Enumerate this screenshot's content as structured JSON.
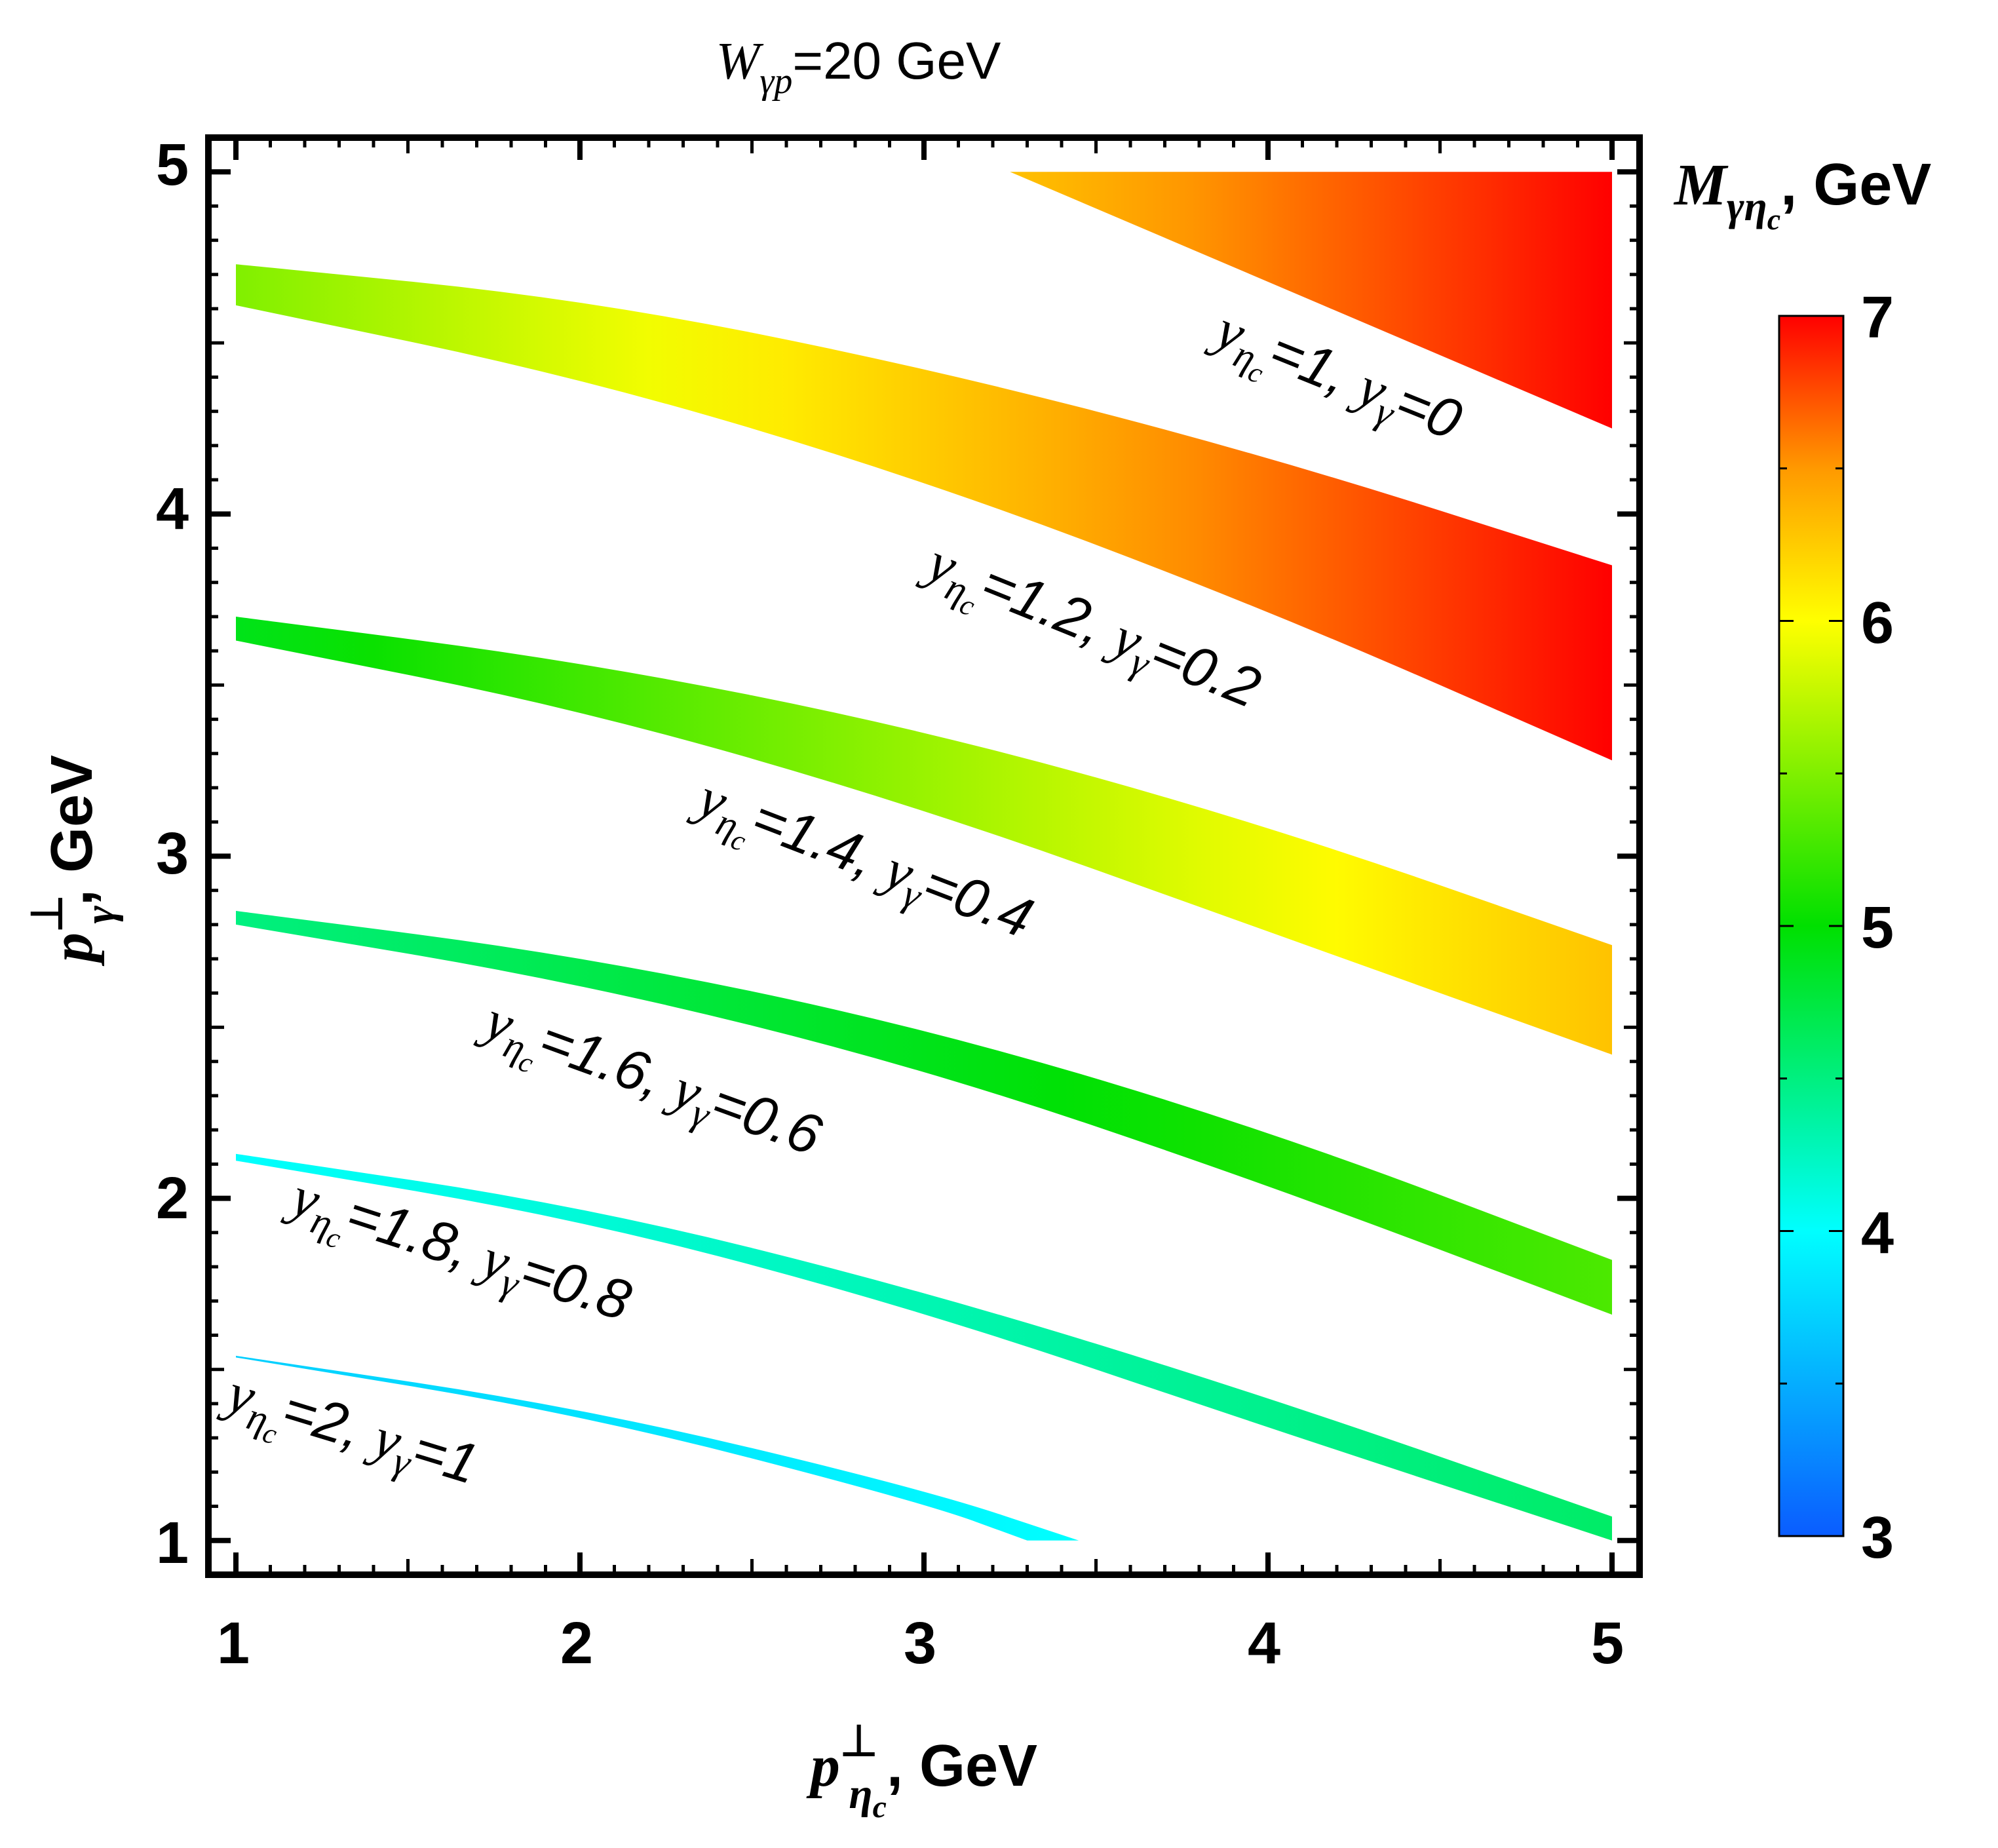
{
  "chart_data": {
    "type": "heatmap",
    "title": "W_γp=20 GeV",
    "title_parts": {
      "main": "W",
      "sub": "γp",
      "rest": "=20 GeV"
    },
    "xlabel": "p_ηc^⊥, GeV",
    "xlabel_parts": {
      "main": "p",
      "sup": "⊥",
      "sub": "η",
      "subsub": "c",
      "rest": ", GeV"
    },
    "ylabel": "p_γ^⊥, GeV",
    "ylabel_parts": {
      "main": "p",
      "sup": "⊥",
      "sub": "γ",
      "rest": ", GeV"
    },
    "xlim": [
      0.92,
      5.08
    ],
    "ylim": [
      0.9,
      5.1
    ],
    "x_ticks": [
      "1",
      "2",
      "3",
      "4",
      "5"
    ],
    "y_ticks": [
      "1",
      "2",
      "3",
      "4",
      "5"
    ],
    "colorbar": {
      "label": "M_γηc, GeV",
      "label_parts": {
        "main": "M",
        "sub": "γη",
        "subsub": "c",
        "rest": ", GeV"
      },
      "range": [
        3,
        7
      ],
      "ticks": [
        "3",
        "4",
        "5",
        "6",
        "7"
      ],
      "stops": [
        {
          "value": 3.0,
          "color": "#0a5cff"
        },
        {
          "value": 4.0,
          "color": "#00ffff"
        },
        {
          "value": 5.0,
          "color": "#00e000"
        },
        {
          "value": 6.0,
          "color": "#ffff00"
        },
        {
          "value": 6.5,
          "color": "#ff9900"
        },
        {
          "value": 7.0,
          "color": "#ff0000"
        }
      ]
    },
    "series": [
      {
        "name": "y_ηc=1, y_γ=0",
        "label": {
          "yeta": "1",
          "ygamma": "0"
        },
        "upper": [
          [
            3.25,
            5.0
          ],
          [
            5.0,
            5.0
          ]
        ],
        "lower": [
          [
            3.25,
            5.0
          ],
          [
            5.0,
            4.25
          ]
        ],
        "m_range": [
          6.3,
          7.0
        ]
      },
      {
        "name": "y_ηc=1.2, y_γ=0.2",
        "label": {
          "yeta": "1.2",
          "ygamma": "0.2"
        },
        "upper": [
          [
            1.0,
            4.73
          ],
          [
            2.0,
            4.63
          ],
          [
            3.0,
            4.43
          ],
          [
            4.0,
            4.17
          ],
          [
            5.0,
            3.85
          ]
        ],
        "lower": [
          [
            1.0,
            4.61
          ],
          [
            2.0,
            4.4
          ],
          [
            3.0,
            4.1
          ],
          [
            4.0,
            3.72
          ],
          [
            5.0,
            3.28
          ]
        ],
        "m_range": [
          5.5,
          7.0
        ]
      },
      {
        "name": "y_ηc=1.4, y_γ=0.4",
        "label": {
          "yeta": "1.4",
          "ygamma": "0.4"
        },
        "upper": [
          [
            1.0,
            3.7
          ],
          [
            2.0,
            3.57
          ],
          [
            3.0,
            3.37
          ],
          [
            4.0,
            3.09
          ],
          [
            5.0,
            2.74
          ]
        ],
        "lower": [
          [
            1.0,
            3.63
          ],
          [
            2.0,
            3.43
          ],
          [
            3.0,
            3.14
          ],
          [
            4.0,
            2.78
          ],
          [
            5.0,
            2.42
          ]
        ],
        "m_range": [
          4.9,
          6.3
        ]
      },
      {
        "name": "y_ηc=1.6, y_γ=0.6",
        "label": {
          "yeta": "1.6",
          "ygamma": "0.6"
        },
        "upper": [
          [
            1.0,
            2.84
          ],
          [
            2.0,
            2.71
          ],
          [
            3.0,
            2.5
          ],
          [
            4.0,
            2.2
          ],
          [
            5.0,
            1.82
          ]
        ],
        "lower": [
          [
            1.0,
            2.8
          ],
          [
            2.0,
            2.63
          ],
          [
            3.0,
            2.38
          ],
          [
            4.0,
            2.04
          ],
          [
            5.0,
            1.66
          ]
        ],
        "m_range": [
          4.5,
          5.3
        ]
      },
      {
        "name": "y_ηc=1.8, y_γ=0.8",
        "label": {
          "yeta": "1.8",
          "ygamma": "0.8"
        },
        "upper": [
          [
            1.0,
            2.13
          ],
          [
            2.0,
            1.98
          ],
          [
            3.0,
            1.73
          ],
          [
            4.0,
            1.42
          ],
          [
            5.0,
            1.07
          ]
        ],
        "lower": [
          [
            1.0,
            2.11
          ],
          [
            2.0,
            1.94
          ],
          [
            3.0,
            1.67
          ],
          [
            4.0,
            1.33
          ],
          [
            5.0,
            1.0
          ]
        ],
        "m_range": [
          4.0,
          4.6
        ]
      },
      {
        "name": "y_ηc=2, y_γ=1",
        "label": {
          "yeta": "2",
          "ygamma": "1"
        },
        "upper": [
          [
            1.0,
            1.54
          ],
          [
            2.0,
            1.39
          ],
          [
            3.0,
            1.15
          ],
          [
            3.45,
            1.0
          ]
        ],
        "lower": [
          [
            1.0,
            1.535
          ],
          [
            2.0,
            1.37
          ],
          [
            3.0,
            1.11
          ],
          [
            3.3,
            1.0
          ]
        ],
        "m_range": [
          3.7,
          4.0
        ]
      }
    ]
  }
}
